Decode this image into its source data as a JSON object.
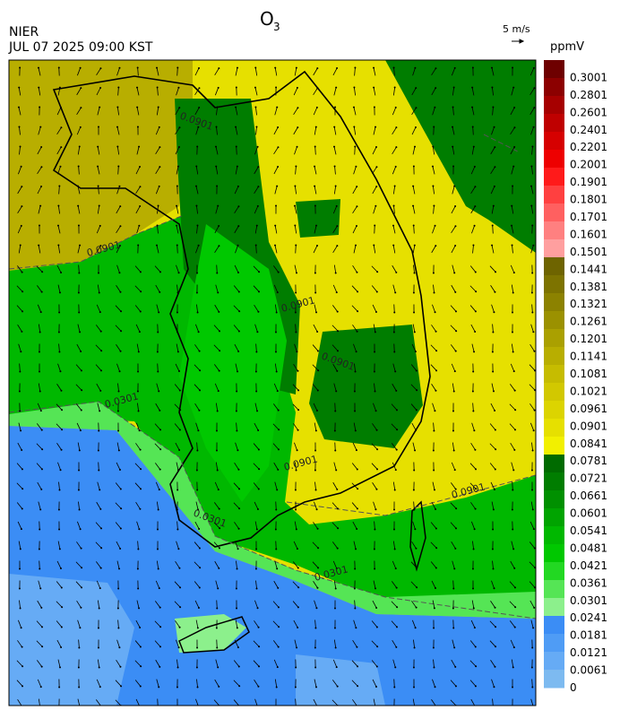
{
  "header": {
    "title": "O",
    "title_subscript": "3",
    "agency": "NIER",
    "datetime": "JUL 07 2025 09:00 KST"
  },
  "wind_scale": {
    "label": "5 m/s"
  },
  "colorbar": {
    "unit": "ppmV",
    "labels": [
      "0.3001",
      "0.2801",
      "0.2601",
      "0.2401",
      "0.2201",
      "0.2001",
      "0.1901",
      "0.1801",
      "0.1701",
      "0.1601",
      "0.1501",
      "0.1441",
      "0.1381",
      "0.1321",
      "0.1261",
      "0.1201",
      "0.1141",
      "0.1081",
      "0.1021",
      "0.0961",
      "0.0901",
      "0.0841",
      "0.0781",
      "0.0721",
      "0.0661",
      "0.0601",
      "0.0541",
      "0.0481",
      "0.0421",
      "0.0361",
      "0.0301",
      "0.0241",
      "0.0181",
      "0.0121",
      "0.0061",
      "0"
    ],
    "colors": [
      "#6e0000",
      "#8c0000",
      "#a60000",
      "#bf0000",
      "#d60000",
      "#ee0000",
      "#ff1a1a",
      "#ff4040",
      "#ff6060",
      "#ff8080",
      "#ff9f9f",
      "#6e6400",
      "#7d7300",
      "#8c8200",
      "#9b9100",
      "#aaa000",
      "#b8ae00",
      "#c6bc00",
      "#d2c800",
      "#dcd400",
      "#e6e000",
      "#f2f000",
      "#006b00",
      "#007d00",
      "#009000",
      "#00a400",
      "#00b800",
      "#00c800",
      "#22d822",
      "#55e555",
      "#8cf08c",
      "#3b8df5",
      "#4f9cf5",
      "#66abf5",
      "#7dbaf0",
      "#9ccbea"
    ]
  },
  "contour_labels": [
    "0.0901",
    "0.0901",
    "0.0901",
    "0.0901",
    "0.0901",
    "0.0301",
    "0.0301",
    "0.0301",
    "0.0901"
  ]
}
